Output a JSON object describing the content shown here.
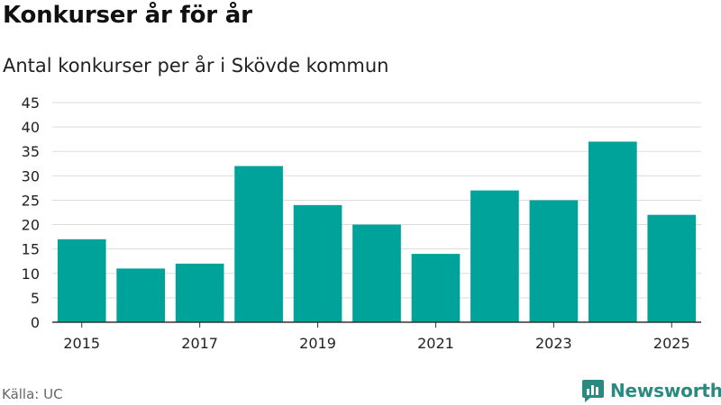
{
  "header": {
    "title": "Konkurser år för år",
    "subtitle": "Antal konkurser per år i Skövde kommun"
  },
  "footer": {
    "source": "Källa: UC",
    "brand": "Newsworthy"
  },
  "colors": {
    "bar": "#00a39a",
    "grid": "#dddddd",
    "axis": "#333333",
    "brand": "#2b8a7f"
  },
  "chart_data": {
    "type": "bar",
    "categories": [
      "2015",
      "2016",
      "2017",
      "2018",
      "2019",
      "2020",
      "2021",
      "2022",
      "2023",
      "2024",
      "2025"
    ],
    "values": [
      17,
      11,
      12,
      32,
      24,
      20,
      14,
      27,
      25,
      37,
      22
    ],
    "x_tick_labels": [
      "2015",
      "2017",
      "2019",
      "2021",
      "2023",
      "2025"
    ],
    "y_ticks": [
      0,
      5,
      10,
      15,
      20,
      25,
      30,
      35,
      40,
      45
    ],
    "ylim": [
      0,
      45
    ],
    "grid": true,
    "title": "Konkurser år för år",
    "subtitle": "Antal konkurser per år i Skövde kommun",
    "xlabel": "",
    "ylabel": ""
  }
}
